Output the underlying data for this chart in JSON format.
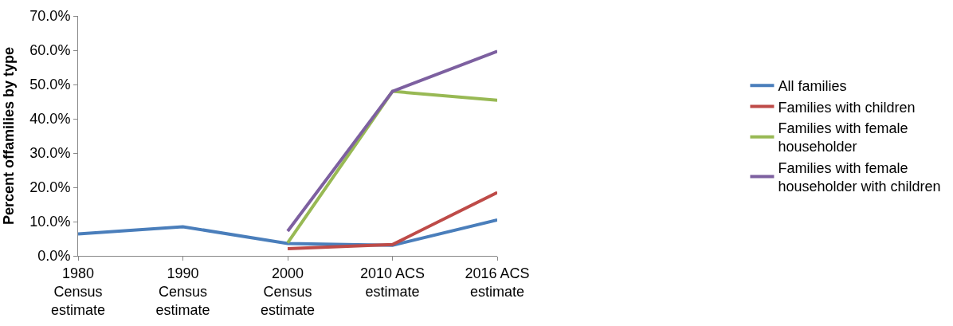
{
  "chart_data": {
    "type": "line",
    "ylabel": "Percent offamilies by type",
    "categories": [
      "1980\nCensus\nestimate",
      "1990\nCensus\nestimate",
      "2000\nCensus\nestimate",
      "2010 ACS\nestimate",
      "2016 ACS\nestimate"
    ],
    "series": [
      {
        "name": "All families",
        "color": "#4a7ebb",
        "values": [
          6.4,
          8.5,
          3.6,
          3.1,
          10.5
        ]
      },
      {
        "name": "Families with children",
        "color": "#be4b48",
        "values": [
          null,
          null,
          2.1,
          3.3,
          18.5
        ]
      },
      {
        "name": "Families with female householder",
        "color": "#98b954",
        "values": [
          null,
          null,
          3.8,
          48.0,
          45.4
        ]
      },
      {
        "name": "Families with female householder with children",
        "color": "#7d60a0",
        "values": [
          null,
          null,
          7.2,
          48.0,
          59.7
        ]
      }
    ],
    "ylim": [
      0,
      70
    ],
    "yticks": [
      {
        "value": 0,
        "label": "0.0%"
      },
      {
        "value": 10,
        "label": "10.0%"
      },
      {
        "value": 20,
        "label": "20.0%"
      },
      {
        "value": 30,
        "label": "30.0%"
      },
      {
        "value": 40,
        "label": "40.0%"
      },
      {
        "value": 50,
        "label": "50.0%"
      },
      {
        "value": 60,
        "label": "60.0%"
      },
      {
        "value": 70,
        "label": "70.0%"
      }
    ],
    "legend": "right",
    "marker": "none",
    "line_style": "solid"
  }
}
